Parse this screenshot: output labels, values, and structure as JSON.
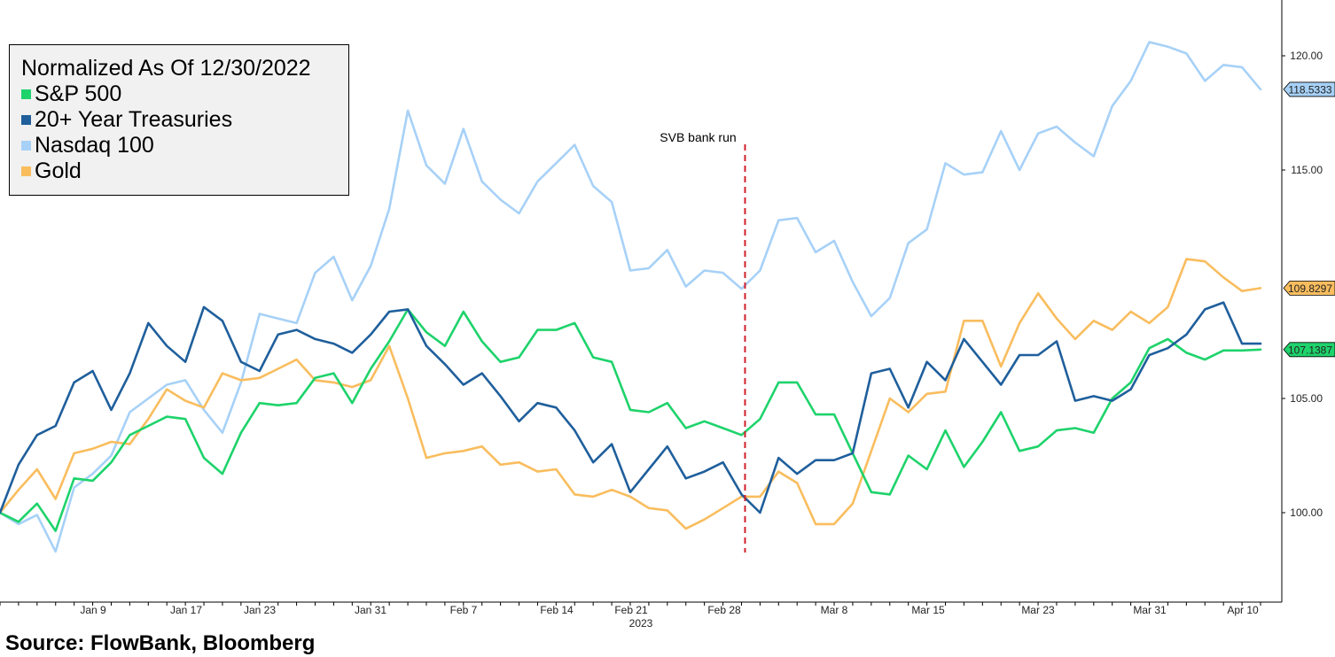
{
  "chart_data": {
    "type": "line",
    "title": "",
    "xlabel": "",
    "ylabel": "",
    "ylim": [
      96,
      121
    ],
    "y_ticks": [
      "100.00",
      "105.00",
      "115.00",
      "120.00"
    ],
    "x_tick_labels": [
      "Jan 9",
      "Jan 17",
      "Jan 23",
      "Jan 31",
      "Feb 7",
      "Feb 14",
      "Feb 21",
      "Feb 28",
      "Mar 8",
      "Mar 15",
      "Mar 23",
      "Mar 31",
      "Apr 10"
    ],
    "x_year_label": "2023",
    "legend": {
      "title": "Normalized As Of 12/30/2022",
      "placement": "top-left"
    },
    "annotation": {
      "label": "SVB bank run",
      "x_index": 40
    },
    "series": [
      {
        "name": "S&P 500",
        "color": "#1ed36b",
        "last_label": "107.1387",
        "values": [
          100,
          99.6,
          100.4,
          99.2,
          101.5,
          101.4,
          102.2,
          103.4,
          103.8,
          104.2,
          104.1,
          102.4,
          101.7,
          103.5,
          104.8,
          104.7,
          104.8,
          105.9,
          106.1,
          104.8,
          106.3,
          107.5,
          108.9,
          107.9,
          107.3,
          108.8,
          107.5,
          106.6,
          106.8,
          108.0,
          108.0,
          108.3,
          106.8,
          106.6,
          104.5,
          104.4,
          104.8,
          103.7,
          104.0,
          103.7,
          103.4,
          104.1,
          105.7,
          105.7,
          104.3,
          104.3,
          102.6,
          100.9,
          100.8,
          102.5,
          101.9,
          103.6,
          102.0,
          103.1,
          104.4,
          102.7,
          102.9,
          103.6,
          103.7,
          103.5,
          105.0,
          105.7,
          107.2,
          107.6,
          107.0,
          106.7,
          107.1,
          107.1,
          107.14
        ]
      },
      {
        "name": "20+ Year Treasuries",
        "color": "#1f5f9c",
        "last_label": "",
        "values": [
          100,
          102.1,
          103.4,
          103.8,
          105.7,
          106.2,
          104.5,
          106.1,
          108.3,
          107.3,
          106.6,
          109.0,
          108.4,
          106.6,
          106.2,
          107.8,
          108.0,
          107.6,
          107.4,
          107.0,
          107.8,
          108.8,
          108.9,
          107.3,
          106.5,
          105.6,
          106.1,
          105.1,
          104.0,
          104.8,
          104.6,
          103.6,
          102.2,
          103.0,
          100.9,
          101.9,
          102.9,
          101.5,
          101.8,
          102.2,
          100.8,
          100.0,
          102.4,
          101.7,
          102.3,
          102.3,
          102.6,
          106.1,
          106.3,
          104.6,
          106.6,
          105.8,
          107.6,
          106.6,
          105.6,
          106.9,
          106.9,
          107.5,
          104.9,
          105.1,
          104.9,
          105.4,
          106.9,
          107.2,
          107.8,
          108.9,
          109.2,
          107.4,
          107.4
        ]
      },
      {
        "name": "Nasdaq 100",
        "color": "#a7d1f7",
        "last_label": "118.5333",
        "values": [
          100,
          99.5,
          99.9,
          98.3,
          101.1,
          101.7,
          102.5,
          104.4,
          105.0,
          105.6,
          105.8,
          104.5,
          103.5,
          105.7,
          108.7,
          108.5,
          108.3,
          110.5,
          111.2,
          109.3,
          110.8,
          113.3,
          117.6,
          115.2,
          114.4,
          116.8,
          114.5,
          113.7,
          113.1,
          114.5,
          115.3,
          116.1,
          114.3,
          113.6,
          110.6,
          110.7,
          111.5,
          109.9,
          110.6,
          110.5,
          109.8,
          110.6,
          112.8,
          112.9,
          111.4,
          111.9,
          110.1,
          108.6,
          109.4,
          111.8,
          112.4,
          115.3,
          114.8,
          114.9,
          116.7,
          115.0,
          116.6,
          116.9,
          116.2,
          115.6,
          117.8,
          118.9,
          120.6,
          120.4,
          120.1,
          118.9,
          119.6,
          119.5,
          118.53
        ]
      },
      {
        "name": "Gold",
        "color": "#f9bd5e",
        "last_label": "109.8297",
        "values": [
          100,
          101.0,
          101.9,
          100.6,
          102.6,
          102.8,
          103.1,
          103.0,
          104.1,
          105.4,
          104.9,
          104.6,
          106.1,
          105.8,
          105.9,
          106.3,
          106.7,
          105.8,
          105.7,
          105.5,
          105.8,
          107.3,
          105.0,
          102.4,
          102.6,
          102.7,
          102.9,
          102.1,
          102.2,
          101.8,
          101.9,
          100.8,
          100.7,
          101.0,
          100.7,
          100.2,
          100.1,
          99.3,
          99.7,
          100.2,
          100.7,
          100.7,
          101.8,
          101.3,
          99.5,
          99.5,
          100.4,
          102.7,
          105.0,
          104.4,
          105.2,
          105.3,
          108.4,
          108.4,
          106.4,
          108.3,
          109.6,
          108.5,
          107.6,
          108.4,
          108.0,
          108.8,
          108.3,
          109.0,
          111.1,
          111.0,
          110.3,
          109.7,
          109.83
        ]
      }
    ]
  },
  "source": "Source:  FlowBank, Bloomberg"
}
